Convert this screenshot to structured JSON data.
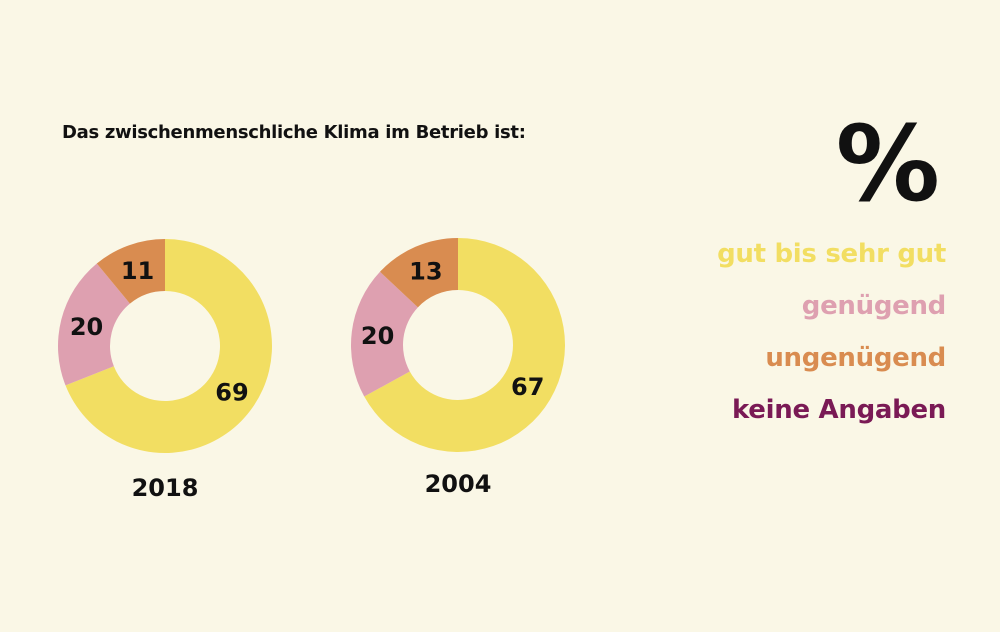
{
  "chart_data": {
    "type": "pie",
    "variant": "donut",
    "title": "Das zwischenmenschliche Klima im Betrieb ist:",
    "unit_label": "%",
    "legend": [
      {
        "label": "gut bis sehr gut",
        "color": "#f2de62"
      },
      {
        "label": "genügend",
        "color": "#dea0b0"
      },
      {
        "label": "ungenügend",
        "color": "#d98c50"
      },
      {
        "label": "keine Angaben",
        "color": "#7a1a55"
      }
    ],
    "legend_placement": "right",
    "charts": [
      {
        "year": "2018",
        "values": [
          69,
          20,
          11,
          0
        ]
      },
      {
        "year": "2004",
        "values": [
          67,
          20,
          13,
          0
        ]
      }
    ]
  }
}
